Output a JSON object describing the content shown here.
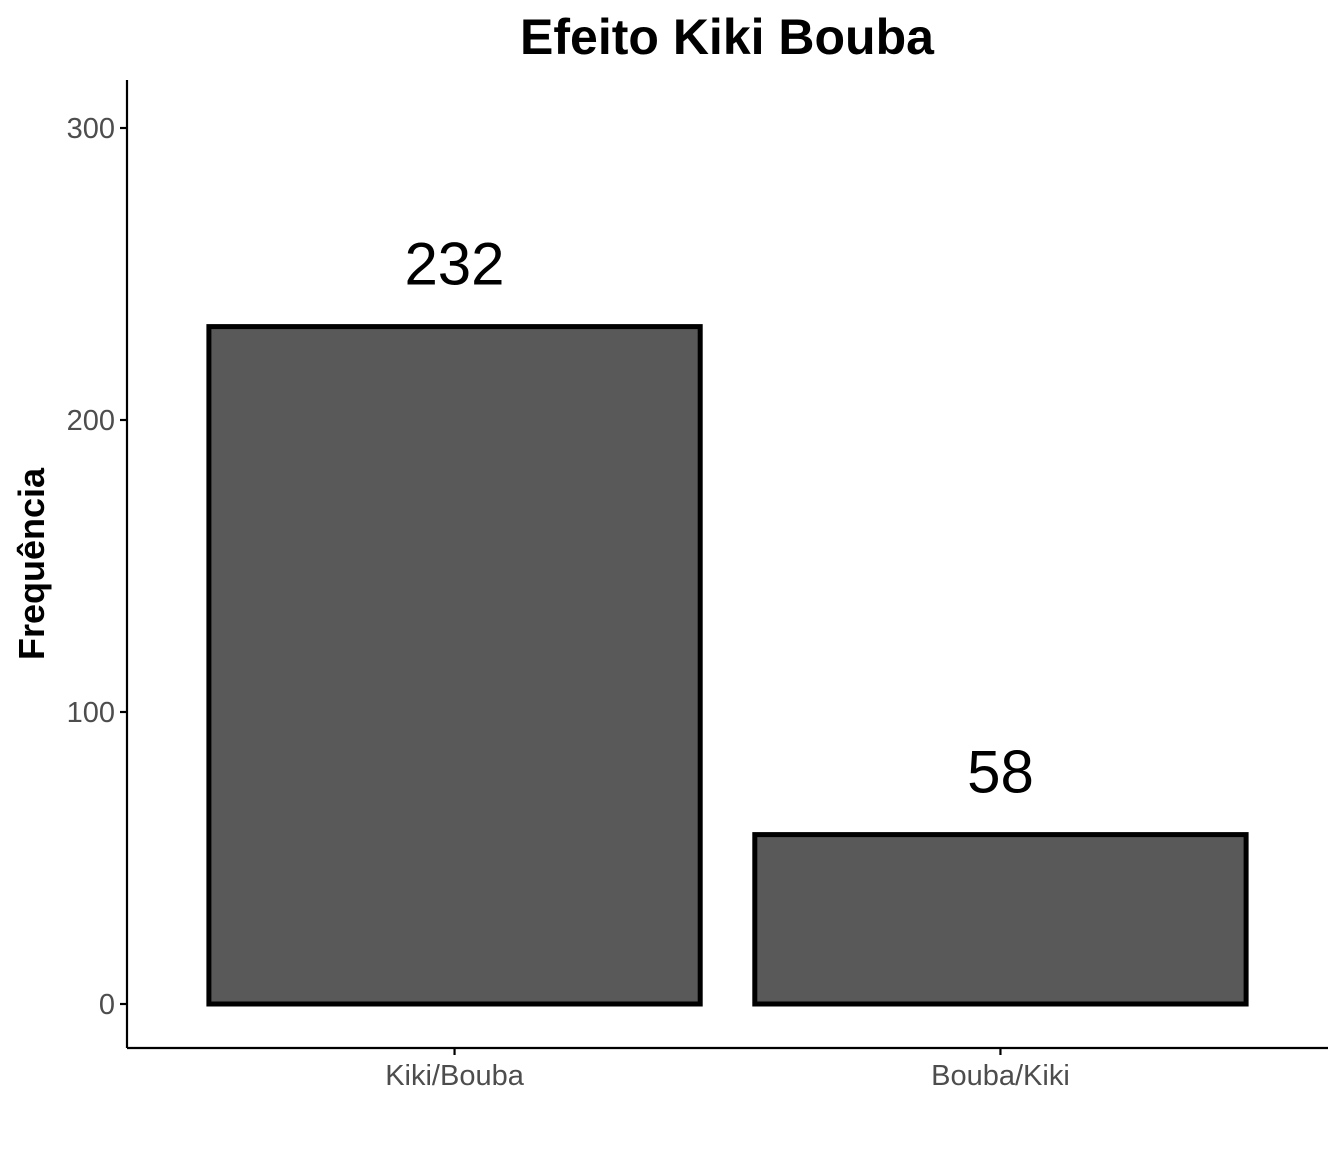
{
  "chart_data": {
    "type": "bar",
    "title": "Efeito Kiki Bouba",
    "xlabel": "",
    "ylabel": "Frequência",
    "categories": [
      "Kiki/Bouba",
      "Bouba/Kiki"
    ],
    "values": [
      232,
      58
    ],
    "data_labels": [
      "232",
      "58"
    ],
    "y_ticks": [
      0,
      100,
      200,
      300
    ],
    "y_tick_labels": [
      "0",
      "100",
      "200",
      "300"
    ],
    "ylim": [
      -15,
      318
    ],
    "grid": false,
    "legend": "none",
    "colors": {
      "bar_fill": "#595959",
      "bar_stroke": "#000000",
      "axis": "#000000",
      "tick_label": "#4d4d4d"
    }
  }
}
